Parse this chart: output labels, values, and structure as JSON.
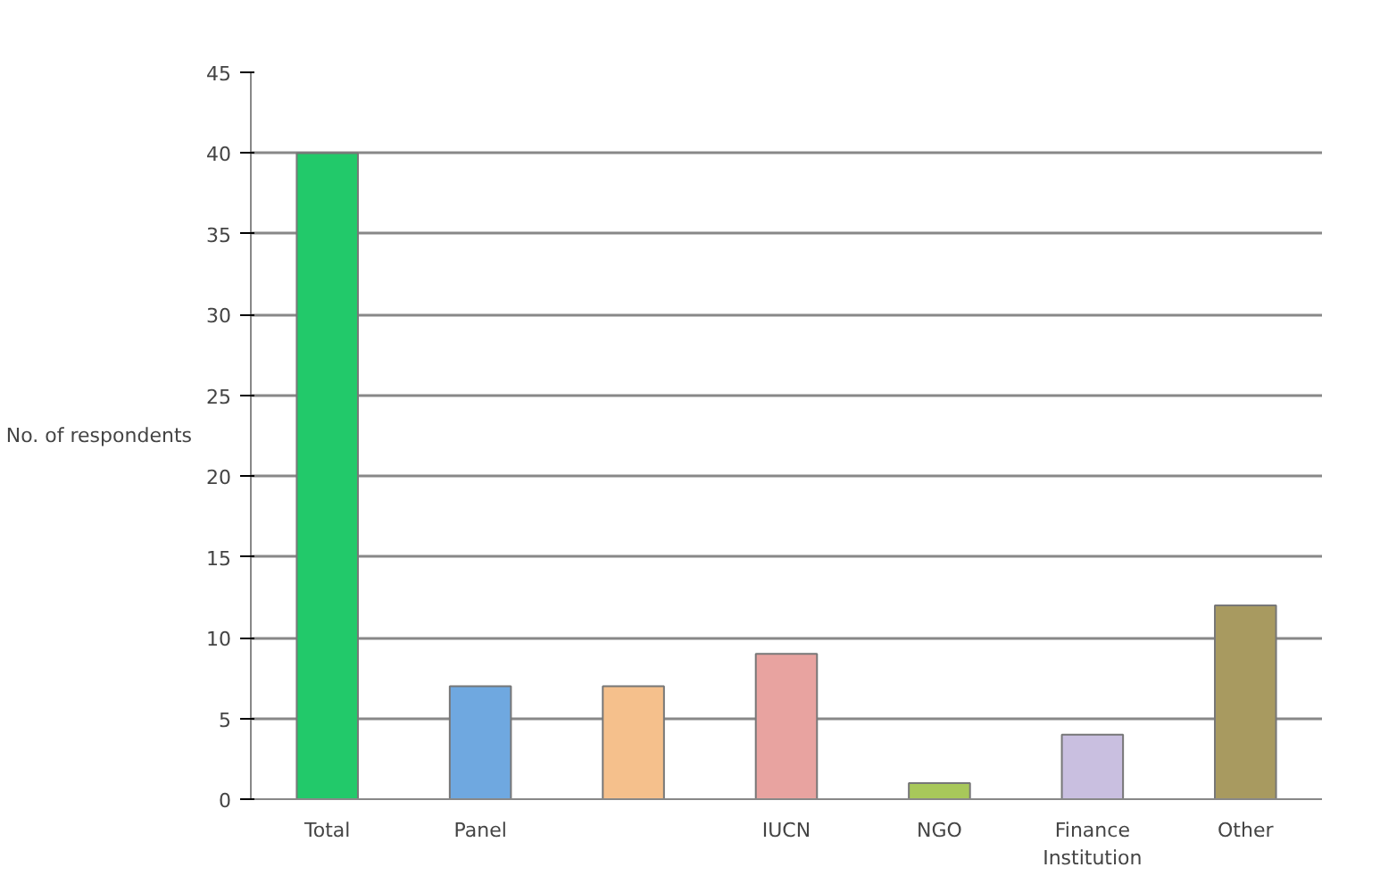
{
  "chart_data": {
    "type": "bar",
    "ylabel": "No. of respondents",
    "categories": [
      "Total",
      "Panel",
      null,
      "IUCN",
      "NGO",
      "Finance Institution",
      "Other"
    ],
    "values": [
      40,
      7,
      7,
      9,
      1,
      4,
      12
    ],
    "colors": [
      "#22c96a",
      "#6fa8e0",
      "#f5c08c",
      "#e8a3a0",
      "#a8c85a",
      "#c9bfe0",
      "#a89a60"
    ],
    "ylim": [
      0,
      45
    ],
    "yticks": [
      0,
      5,
      10,
      15,
      20,
      25,
      30,
      35,
      40,
      45
    ],
    "grid": "y"
  }
}
